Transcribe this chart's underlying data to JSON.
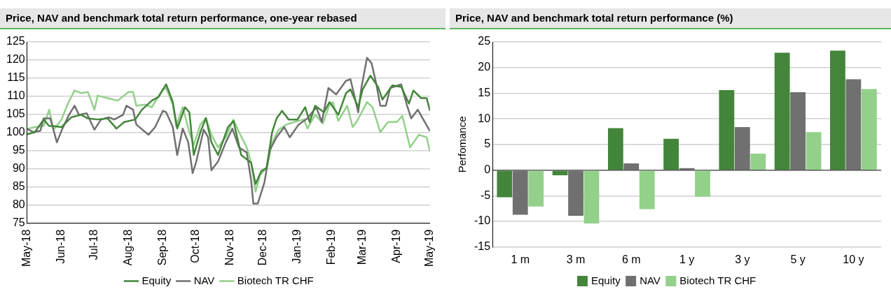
{
  "chart_data": [
    {
      "type": "line",
      "title": "Price, NAV and benchmark total return performance, one-year rebased",
      "xlim": [
        "2018-05-01",
        "2019-05-01"
      ],
      "xticks": [
        {
          "value": "2018-05-01",
          "label": "May-18"
        },
        {
          "value": "2018-06-01",
          "label": "Jun-18"
        },
        {
          "value": "2018-07-01",
          "label": "Jul-18"
        },
        {
          "value": "2018-08-01",
          "label": "Aug-18"
        },
        {
          "value": "2018-09-01",
          "label": "Sep-18"
        },
        {
          "value": "2018-10-01",
          "label": "Oct-18"
        },
        {
          "value": "2018-11-01",
          "label": "Nov-18"
        },
        {
          "value": "2018-12-01",
          "label": "Dec-18"
        },
        {
          "value": "2019-01-01",
          "label": "Jan-19"
        },
        {
          "value": "2019-02-01",
          "label": "Feb-19"
        },
        {
          "value": "2019-03-01",
          "label": "Mar-19"
        },
        {
          "value": "2019-04-01",
          "label": "Apr-19"
        },
        {
          "value": "2019-05-01",
          "label": "May-19"
        }
      ],
      "ylim": [
        75,
        125
      ],
      "yticks": [
        75,
        80,
        85,
        90,
        95,
        100,
        105,
        110,
        115,
        120,
        125
      ],
      "grid": "y",
      "legend": "bottom",
      "series": [
        {
          "name": "Equity",
          "color": "#43853a",
          "x": [
            "2018-05-01",
            "2018-05-08",
            "2018-05-16",
            "2018-05-21",
            "2018-05-25",
            "2018-06-01",
            "2018-06-10",
            "2018-06-19",
            "2018-06-25",
            "2018-07-04",
            "2018-07-13",
            "2018-07-21",
            "2018-07-28",
            "2018-08-07",
            "2018-08-13",
            "2018-08-22",
            "2018-08-28",
            "2018-09-04",
            "2018-09-10",
            "2018-09-14",
            "2018-09-21",
            "2018-09-25",
            "2018-09-29",
            "2018-10-05",
            "2018-10-10",
            "2018-10-15",
            "2018-10-21",
            "2018-10-30",
            "2018-11-04",
            "2018-11-11",
            "2018-11-20",
            "2018-11-24",
            "2018-11-29",
            "2018-12-04",
            "2018-12-09",
            "2018-12-13",
            "2018-12-18",
            "2018-12-24",
            "2019-01-01",
            "2019-01-08",
            "2019-01-12",
            "2019-01-17",
            "2019-01-25",
            "2019-01-30",
            "2019-02-07",
            "2019-02-14",
            "2019-02-18",
            "2019-02-25",
            "2019-03-01",
            "2019-03-08",
            "2019-03-15",
            "2019-03-19",
            "2019-03-28",
            "2019-04-05",
            "2019-04-12",
            "2019-04-16",
            "2019-04-23",
            "2019-04-28",
            "2019-05-01"
          ],
          "values": [
            99.5,
            100.1,
            103.6,
            101.8,
            101.8,
            101.5,
            104.2,
            104.9,
            103.9,
            103.6,
            103.9,
            101.1,
            102.9,
            103.6,
            106.3,
            108.8,
            109.8,
            113.3,
            108.4,
            101.1,
            107,
            105.6,
            93.8,
            100.1,
            104,
            97.3,
            93.8,
            101.5,
            103.2,
            93.8,
            91.7,
            85.8,
            89.3,
            90.3,
            100.1,
            103.9,
            106,
            103.6,
            103.6,
            107,
            102.9,
            107.4,
            105.6,
            108.4,
            104.9,
            110.9,
            111.9,
            107,
            111.9,
            115.7,
            112.6,
            109.1,
            113,
            112.6,
            108,
            111.6,
            109.5,
            109.5,
            106
          ]
        },
        {
          "name": "NAV",
          "color": "#707070",
          "x": [
            "2018-05-01",
            "2018-05-07",
            "2018-05-13",
            "2018-05-16",
            "2018-05-22",
            "2018-05-28",
            "2018-06-02",
            "2018-06-08",
            "2018-06-13",
            "2018-06-17",
            "2018-06-24",
            "2018-07-01",
            "2018-07-07",
            "2018-07-14",
            "2018-07-19",
            "2018-07-27",
            "2018-07-30",
            "2018-08-05",
            "2018-08-08",
            "2018-08-19",
            "2018-08-25",
            "2018-09-01",
            "2018-09-04",
            "2018-09-10",
            "2018-09-14",
            "2018-09-19",
            "2018-09-24",
            "2018-09-28",
            "2018-10-01",
            "2018-10-08",
            "2018-10-12",
            "2018-10-15",
            "2018-10-21",
            "2018-10-28",
            "2018-11-03",
            "2018-11-09",
            "2018-11-16",
            "2018-11-20",
            "2018-11-22",
            "2018-11-26",
            "2018-12-02",
            "2018-12-07",
            "2018-12-13",
            "2018-12-20",
            "2018-12-25",
            "2019-01-02",
            "2019-01-10",
            "2019-01-18",
            "2019-01-23",
            "2019-01-29",
            "2019-02-05",
            "2019-02-14",
            "2019-02-18",
            "2019-02-25",
            "2019-02-28",
            "2019-03-05",
            "2019-03-09",
            "2019-03-13",
            "2019-03-17",
            "2019-03-22",
            "2019-03-26",
            "2019-04-05",
            "2019-04-10",
            "2019-04-14",
            "2019-04-20",
            "2019-04-25",
            "2019-05-01"
          ],
          "values": [
            101,
            100.1,
            100.5,
            103.9,
            103.9,
            97.3,
            101.1,
            104.9,
            107.4,
            104.9,
            105.3,
            100.8,
            103.6,
            104.2,
            103.6,
            104.9,
            107.4,
            106.3,
            102.2,
            99.4,
            101.5,
            106,
            105.6,
            101.5,
            93.8,
            101.1,
            97.3,
            88.8,
            91.7,
            100.8,
            98.7,
            89.6,
            92,
            97.3,
            101.1,
            95.9,
            94.5,
            86.8,
            80.4,
            80.4,
            86.2,
            95.2,
            98.7,
            101.5,
            98.7,
            102.2,
            103.9,
            107,
            102.9,
            112.3,
            110.5,
            114.3,
            114.7,
            105.6,
            112.6,
            120.6,
            119.2,
            114,
            107.4,
            107.4,
            112.3,
            113.3,
            107.7,
            103.9,
            106.3,
            103.6,
            100.4
          ]
        },
        {
          "name": "Biotech TR CHF",
          "color": "#93d08a",
          "x": [
            "2018-05-01",
            "2018-05-08",
            "2018-05-16",
            "2018-05-21",
            "2018-05-25",
            "2018-06-01",
            "2018-06-07",
            "2018-06-13",
            "2018-06-19",
            "2018-06-25",
            "2018-07-01",
            "2018-07-04",
            "2018-07-13",
            "2018-07-22",
            "2018-08-01",
            "2018-08-05",
            "2018-08-08",
            "2018-08-16",
            "2018-08-22",
            "2018-09-01",
            "2018-09-04",
            "2018-09-10",
            "2018-09-13",
            "2018-09-19",
            "2018-09-25",
            "2018-09-29",
            "2018-10-05",
            "2018-10-10",
            "2018-10-15",
            "2018-10-21",
            "2018-10-28",
            "2018-11-04",
            "2018-11-09",
            "2018-11-16",
            "2018-11-20",
            "2018-11-24",
            "2018-11-28",
            "2018-12-04",
            "2018-12-09",
            "2018-12-15",
            "2018-12-22",
            "2019-01-01",
            "2019-01-07",
            "2019-01-10",
            "2019-01-17",
            "2019-01-24",
            "2019-01-30",
            "2019-02-02",
            "2019-02-07",
            "2019-02-15",
            "2019-02-20",
            "2019-02-24",
            "2019-03-05",
            "2019-03-10",
            "2019-03-17",
            "2019-03-24",
            "2019-04-01",
            "2019-04-06",
            "2019-04-13",
            "2019-04-21",
            "2019-04-28",
            "2019-05-01"
          ],
          "values": [
            101,
            101.5,
            101.8,
            106.3,
            100.8,
            103.5,
            108,
            111.6,
            110.9,
            111.2,
            106.3,
            110.2,
            109.5,
            108.8,
            111.2,
            111.2,
            107.4,
            107.7,
            107,
            111.9,
            112.3,
            107.7,
            101.8,
            107,
            100.1,
            96.6,
            102.2,
            104,
            99.4,
            95.9,
            98.7,
            103.6,
            100.1,
            95.9,
            91.7,
            83.7,
            88.2,
            90.3,
            97.3,
            100.8,
            102.2,
            103.2,
            103.6,
            101.1,
            104.9,
            102.5,
            107.7,
            108.4,
            103.2,
            107.4,
            101.5,
            103.2,
            108.4,
            107,
            100.1,
            102.9,
            102.9,
            104.6,
            95.9,
            99.4,
            98.7,
            94.8
          ]
        }
      ]
    },
    {
      "type": "bar",
      "title": "Price, NAV and benchmark total return performance (%)",
      "ylabel": "Perfomance",
      "categories": [
        "1 m",
        "3 m",
        "6 m",
        "1 y",
        "3 y",
        "5 y",
        "10 y"
      ],
      "ylim": [
        -15,
        25
      ],
      "yticks": [
        -15,
        -10,
        -5,
        0,
        5,
        10,
        15,
        20,
        25
      ],
      "grid": "y",
      "legend": "bottom",
      "series": [
        {
          "name": "Equity",
          "color": "#43853a",
          "values": [
            -5.3,
            -1.0,
            8.2,
            6.1,
            15.6,
            22.9,
            23.3
          ]
        },
        {
          "name": "NAV",
          "color": "#707070",
          "values": [
            -8.7,
            -8.9,
            1.3,
            0.4,
            8.4,
            15.2,
            17.7
          ]
        },
        {
          "name": "Biotech TR CHF",
          "color": "#93d08a",
          "values": [
            -7.1,
            -10.4,
            -7.6,
            -5.2,
            3.2,
            7.4,
            15.8
          ]
        }
      ]
    }
  ]
}
